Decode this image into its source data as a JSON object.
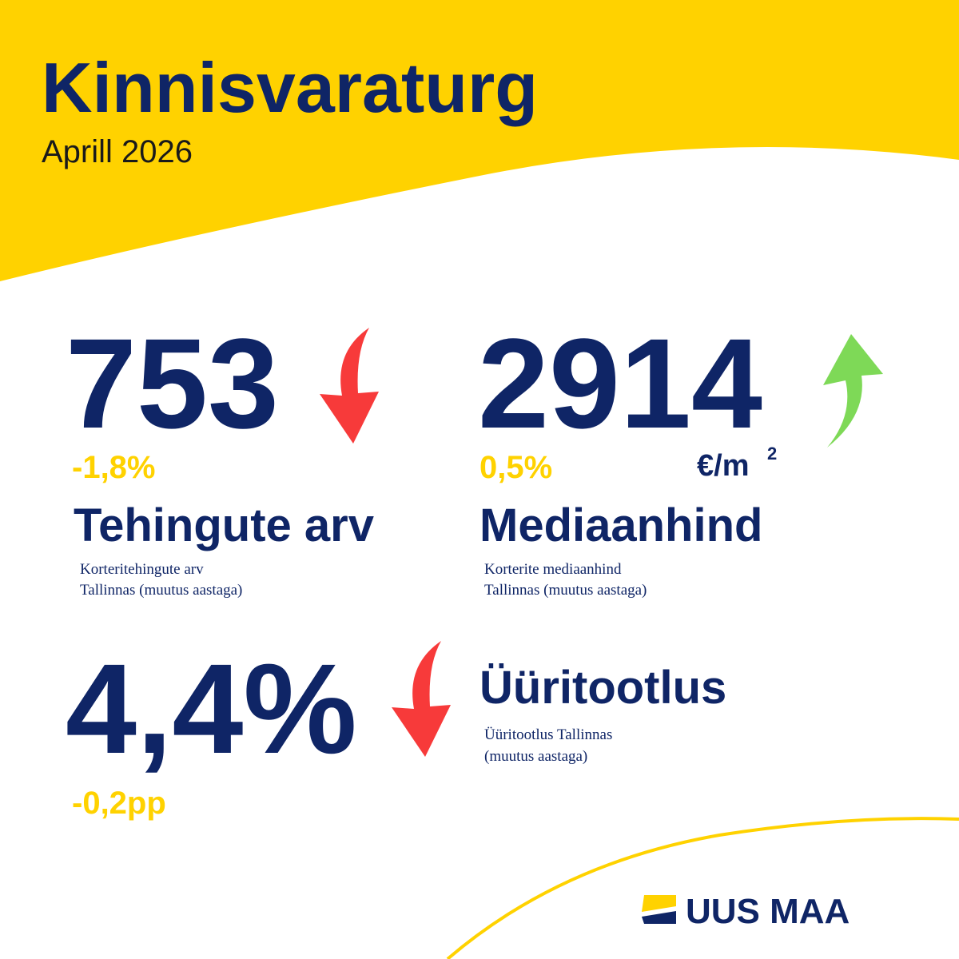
{
  "header": {
    "title": "Kinnisvaraturg",
    "subtitle": "Aprill 2026"
  },
  "metrics": [
    {
      "value": "753",
      "change": "-1,8%",
      "label": "Tehingute arv",
      "description": [
        "Korteritehingute arv",
        "Tallinnas (muutus aastaga)"
      ]
    },
    {
      "value": "2914",
      "unit": "€/m",
      "unit_superscript": "2",
      "change": "0,5%",
      "label": "Mediaanhind",
      "description": [
        "Korterite mediaanhind",
        "Tallinnas (muutus aastaga)"
      ]
    },
    {
      "value": "4,4%",
      "change": "-0,2pp",
      "label": "Üüritootlus",
      "description": [
        "Üüritootlus Tallinnas",
        "(muutus aastaga)"
      ]
    }
  ],
  "logo": "UUS MAA"
}
